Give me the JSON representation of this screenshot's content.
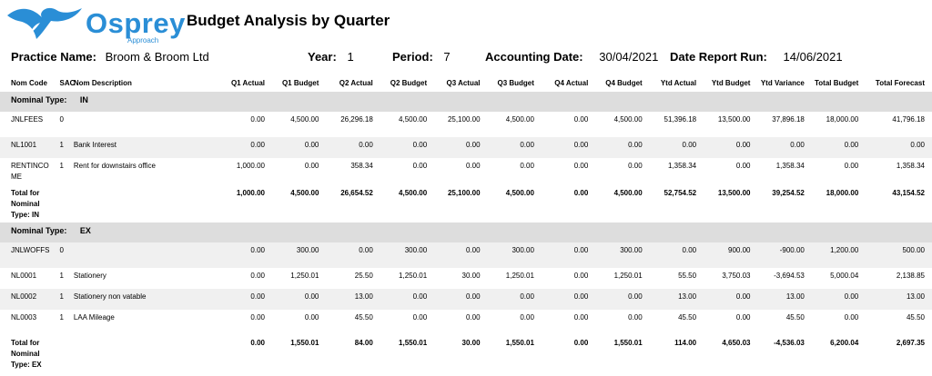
{
  "logo": {
    "word": "Osprey",
    "sub": "Approach"
  },
  "report_title": "Budget Analysis by Quarter",
  "meta": {
    "practice_label": "Practice Name:",
    "practice": "Broom & Broom Ltd",
    "year_label": "Year:",
    "year": "1",
    "period_label": "Period:",
    "period": "7",
    "accdate_label": "Accounting Date:",
    "accdate": "30/04/2021",
    "rundate_label": "Date Report Run:",
    "rundate": "14/06/2021"
  },
  "columns": [
    "Nom Code",
    "SAC",
    "Nom Description",
    "Q1 Actual",
    "Q1 Budget",
    "Q2 Actual",
    "Q2 Budget",
    "Q3 Actual",
    "Q3 Budget",
    "Q4 Actual",
    "Q4 Budget",
    "Ytd Actual",
    "Ytd Budget",
    "Ytd Variance",
    "Total Budget",
    "Total Forecast"
  ],
  "groups": [
    {
      "label": "Nominal Type:",
      "type": "IN",
      "rows": [
        {
          "code": "JNLFEES",
          "sac": "0",
          "desc": "",
          "vals": [
            "0.00",
            "4,500.00",
            "26,296.18",
            "4,500.00",
            "25,100.00",
            "4,500.00",
            "0.00",
            "4,500.00",
            "51,396.18",
            "13,500.00",
            "37,896.18",
            "18,000.00",
            "41,796.18"
          ]
        },
        {
          "code": "NL1001",
          "sac": "1",
          "desc": "Bank Interest",
          "vals": [
            "0.00",
            "0.00",
            "0.00",
            "0.00",
            "0.00",
            "0.00",
            "0.00",
            "0.00",
            "0.00",
            "0.00",
            "0.00",
            "0.00",
            "0.00"
          ]
        },
        {
          "code": "RENTINCOME",
          "sac": "1",
          "desc": "Rent for downstairs office",
          "vals": [
            "1,000.00",
            "0.00",
            "358.34",
            "0.00",
            "0.00",
            "0.00",
            "0.00",
            "0.00",
            "1,358.34",
            "0.00",
            "1,358.34",
            "0.00",
            "1,358.34"
          ]
        }
      ],
      "total_label": "Total for Nominal Type: IN",
      "totals": [
        "1,000.00",
        "4,500.00",
        "26,654.52",
        "4,500.00",
        "25,100.00",
        "4,500.00",
        "0.00",
        "4,500.00",
        "52,754.52",
        "13,500.00",
        "39,254.52",
        "18,000.00",
        "43,154.52"
      ]
    },
    {
      "label": "Nominal Type:",
      "type": "EX",
      "rows": [
        {
          "code": "JNLWOFFS",
          "sac": "0",
          "desc": "",
          "vals": [
            "0.00",
            "300.00",
            "0.00",
            "300.00",
            "0.00",
            "300.00",
            "0.00",
            "300.00",
            "0.00",
            "900.00",
            "-900.00",
            "1,200.00",
            "500.00"
          ]
        },
        {
          "code": "NL0001",
          "sac": "1",
          "desc": "Stationery",
          "vals": [
            "0.00",
            "1,250.01",
            "25.50",
            "1,250.01",
            "30.00",
            "1,250.01",
            "0.00",
            "1,250.01",
            "55.50",
            "3,750.03",
            "-3,694.53",
            "5,000.04",
            "2,138.85"
          ]
        },
        {
          "code": "NL0002",
          "sac": "1",
          "desc": "Stationery non vatable",
          "vals": [
            "0.00",
            "0.00",
            "13.00",
            "0.00",
            "0.00",
            "0.00",
            "0.00",
            "0.00",
            "13.00",
            "0.00",
            "13.00",
            "0.00",
            "13.00"
          ]
        },
        {
          "code": "NL0003",
          "sac": "1",
          "desc": "LAA Mileage",
          "vals": [
            "0.00",
            "0.00",
            "45.50",
            "0.00",
            "0.00",
            "0.00",
            "0.00",
            "0.00",
            "45.50",
            "0.00",
            "45.50",
            "0.00",
            "45.50"
          ]
        }
      ],
      "total_label": "Total for Nominal Type: EX",
      "totals": [
        "0.00",
        "1,550.01",
        "84.00",
        "1,550.01",
        "30.00",
        "1,550.01",
        "0.00",
        "1,550.01",
        "114.00",
        "4,650.03",
        "-4,536.03",
        "6,200.04",
        "2,697.35"
      ]
    }
  ]
}
